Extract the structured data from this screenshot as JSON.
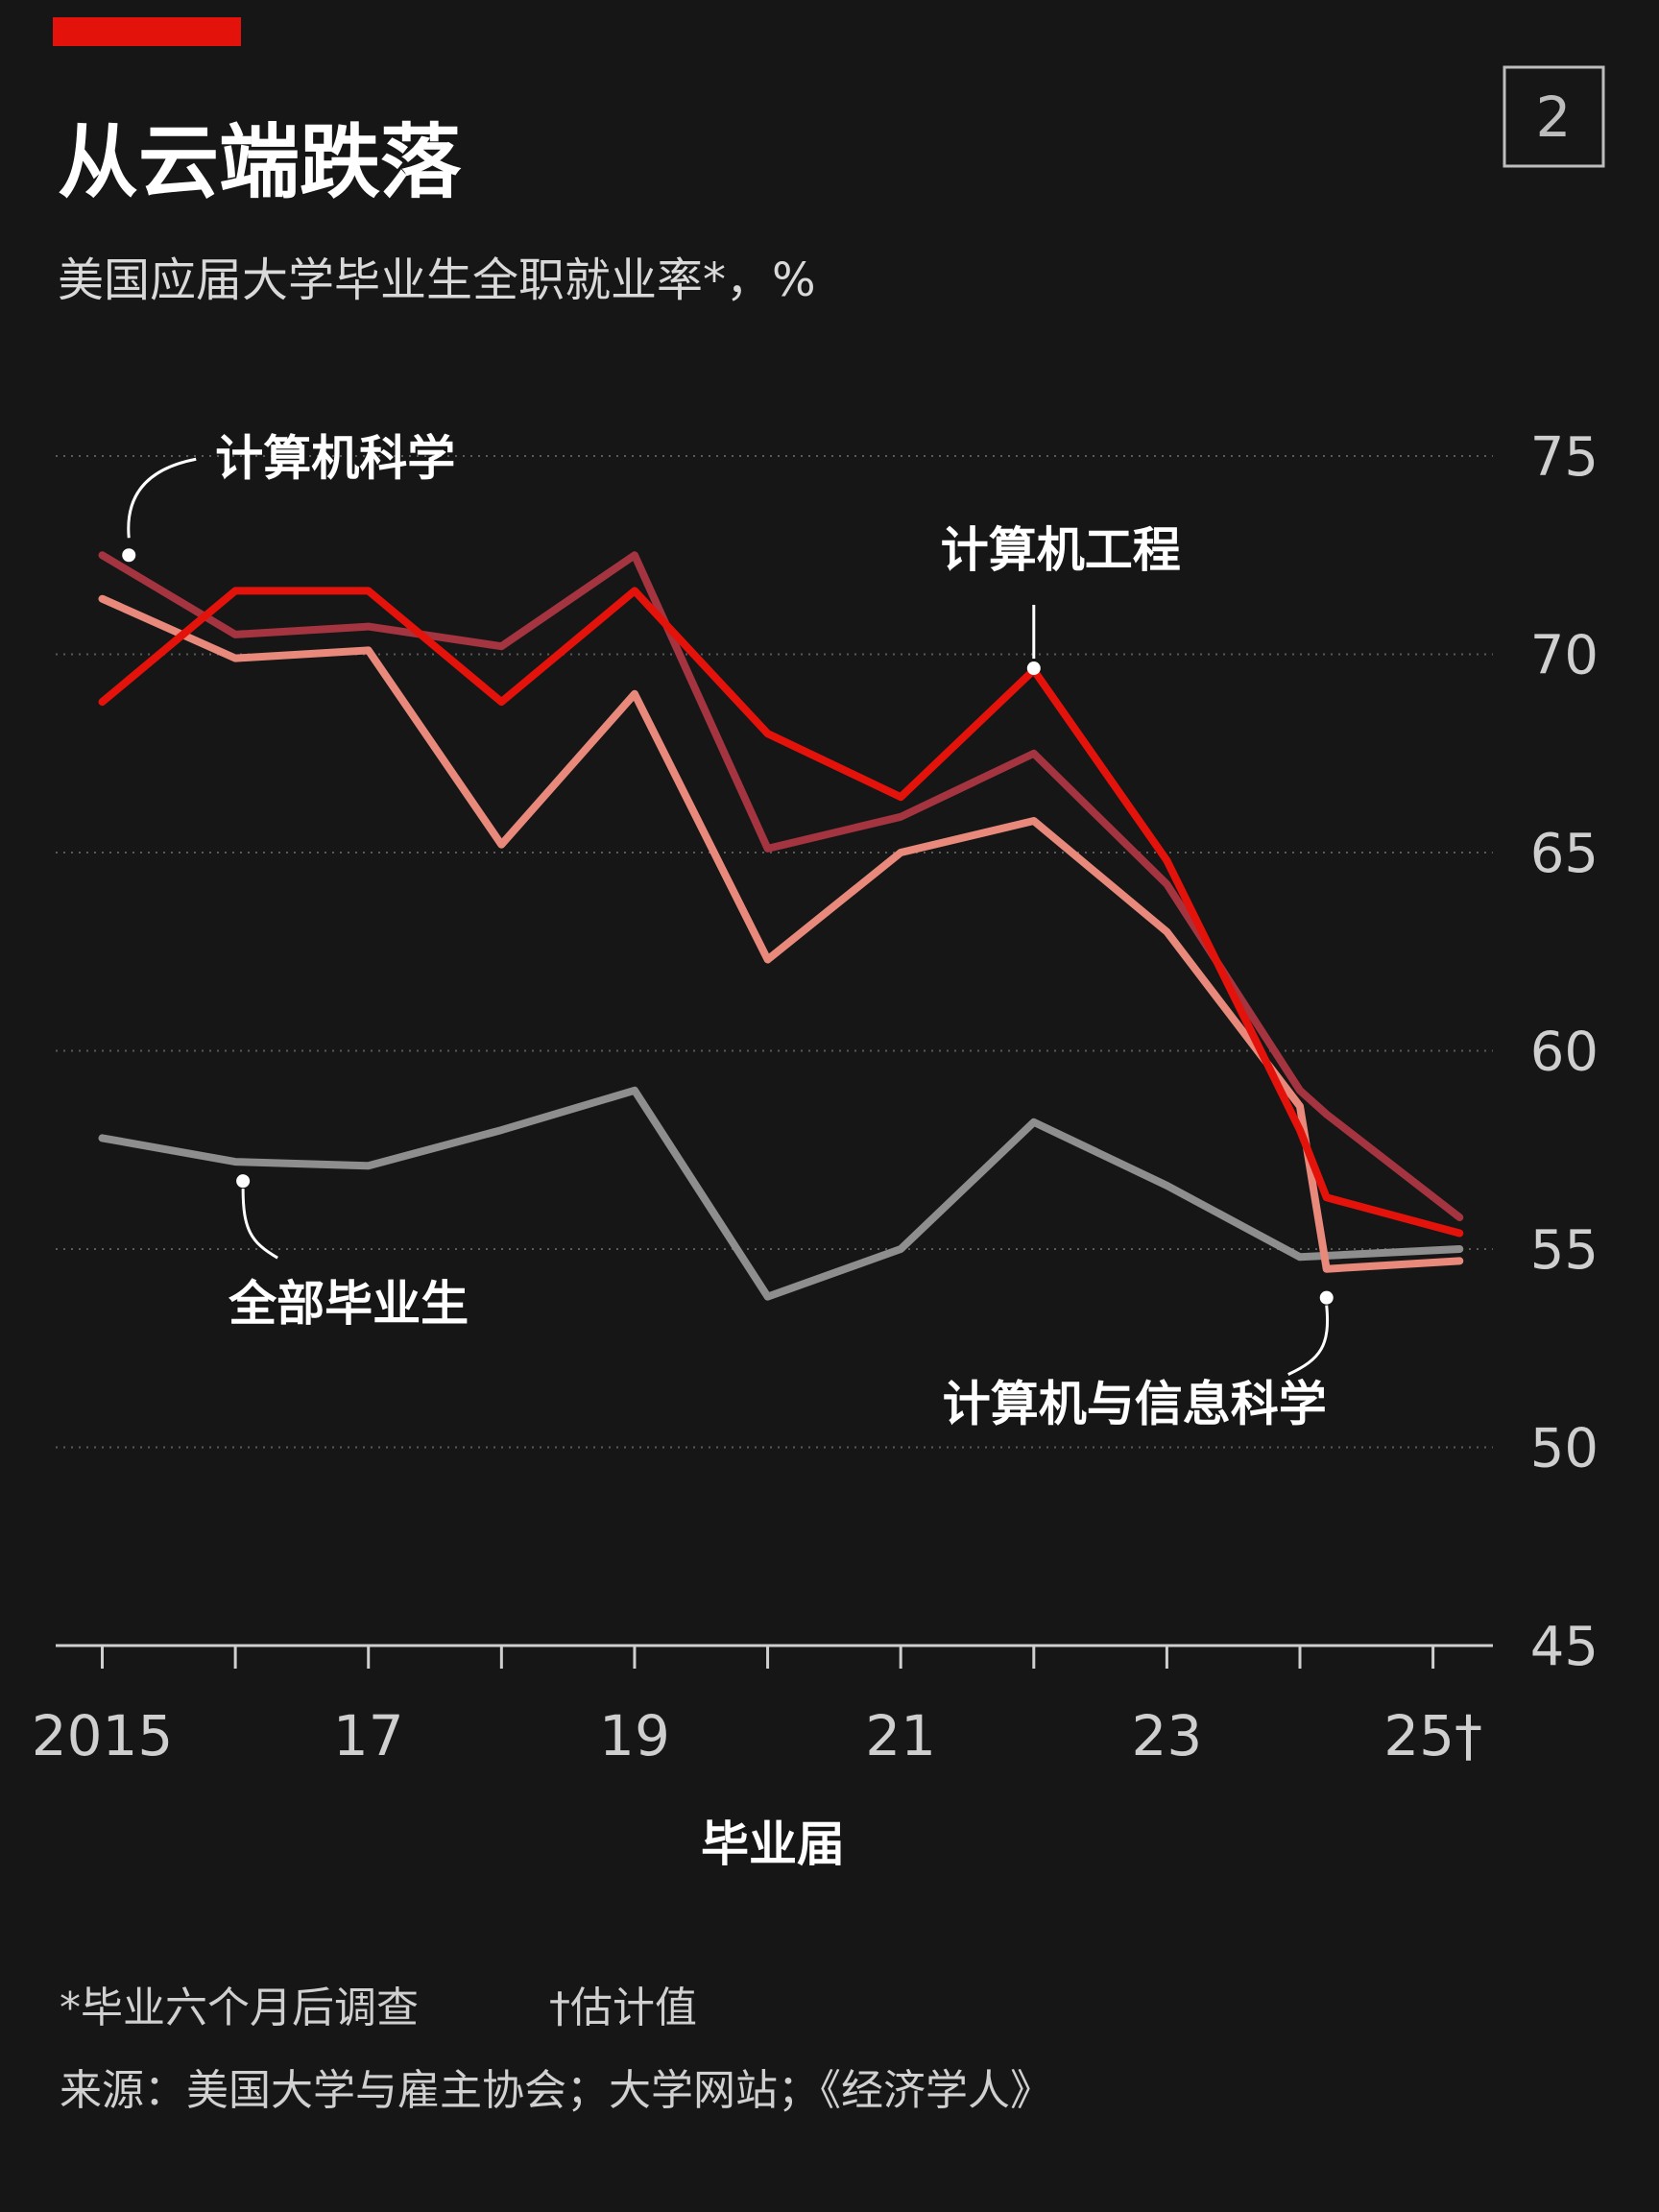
{
  "figure_number": "2",
  "title": "从云端跌落",
  "subtitle": "美国应届大学毕业生全职就业率*，%",
  "footnote1": "*毕业六个月后调查",
  "footnote2": "†估计值",
  "source": "来源：美国大学与雇主协会；大学网站；《经济学人》",
  "colors": {
    "background": "#161616",
    "accent": "#e3120b",
    "grid": "#5a5a5a",
    "axis": "#cfcfcf"
  },
  "chart_data": {
    "type": "line",
    "title": "从云端跌落",
    "subtitle": "美国应届大学毕业生全职就业率*，%",
    "xlabel": "毕业届",
    "ylabel": "",
    "x": [
      2015,
      2016,
      2017,
      2018,
      2019,
      2020,
      2021,
      2022,
      2023,
      2024,
      2025
    ],
    "xlim": [
      2014.65,
      2025.45
    ],
    "ylim": [
      45,
      75
    ],
    "y_ticks": [
      45,
      50,
      55,
      60,
      65,
      70,
      75
    ],
    "y_tick_labels": [
      "45",
      "50",
      "55",
      "60",
      "65",
      "70",
      "75"
    ],
    "x_tick_positions": [
      2015,
      2016,
      2017,
      2018,
      2019,
      2020,
      2021,
      2022,
      2023,
      2024,
      2025
    ],
    "x_tick_labels": [
      {
        "x": 2015,
        "text": "2015"
      },
      {
        "x": 2017,
        "text": "17"
      },
      {
        "x": 2019,
        "text": "19"
      },
      {
        "x": 2021,
        "text": "21"
      },
      {
        "x": 2023,
        "text": "23"
      },
      {
        "x": 2025,
        "text": "25†"
      }
    ],
    "grid": true,
    "series": [
      {
        "name": "全部毕业生",
        "color": "#8e8e8e",
        "x": [
          2015,
          2016,
          2017,
          2018,
          2019,
          2020,
          2021,
          2022,
          2023,
          2024,
          2025.2
        ],
        "values": [
          57.8,
          57.2,
          57.1,
          58.0,
          59.0,
          53.8,
          55.0,
          58.2,
          56.6,
          54.8,
          55.0
        ]
      },
      {
        "name": "计算机与信息科学",
        "color": "#e8897b",
        "x": [
          2015,
          2016,
          2017,
          2018,
          2019,
          2020,
          2021,
          2022,
          2023,
          2024,
          2024.2,
          2025.2
        ],
        "values": [
          71.4,
          69.9,
          70.1,
          65.2,
          69.0,
          62.3,
          65.0,
          65.8,
          63.0,
          58.6,
          54.5,
          54.7
        ]
      },
      {
        "name": "计算机科学",
        "color": "#a33440",
        "x": [
          2015,
          2016,
          2017,
          2018,
          2019,
          2020,
          2021,
          2022,
          2023,
          2024,
          2024.2,
          2025.2
        ],
        "values": [
          72.5,
          70.5,
          70.7,
          70.2,
          72.5,
          65.1,
          65.9,
          67.5,
          64.2,
          59.0,
          58.4,
          55.8
        ]
      },
      {
        "name": "计算机工程",
        "color": "#e3120b",
        "x": [
          2015,
          2016,
          2017,
          2018,
          2019,
          2020,
          2021,
          2022,
          2023,
          2024,
          2024.2,
          2025.2
        ],
        "values": [
          68.8,
          71.6,
          71.6,
          68.8,
          71.6,
          68.0,
          66.4,
          69.6,
          64.8,
          58.0,
          56.3,
          55.4
        ]
      }
    ],
    "annotations": [
      {
        "text": "计算机科学",
        "series": "计算机科学",
        "x": 2015.2
      },
      {
        "text": "计算机工程",
        "series": "计算机工程",
        "x": 2022
      },
      {
        "text": "全部毕业生",
        "series": "全部毕业生",
        "x": 2016
      },
      {
        "text": "计算机与信息科学",
        "series": "计算机与信息科学",
        "x": 2024.2
      }
    ]
  }
}
